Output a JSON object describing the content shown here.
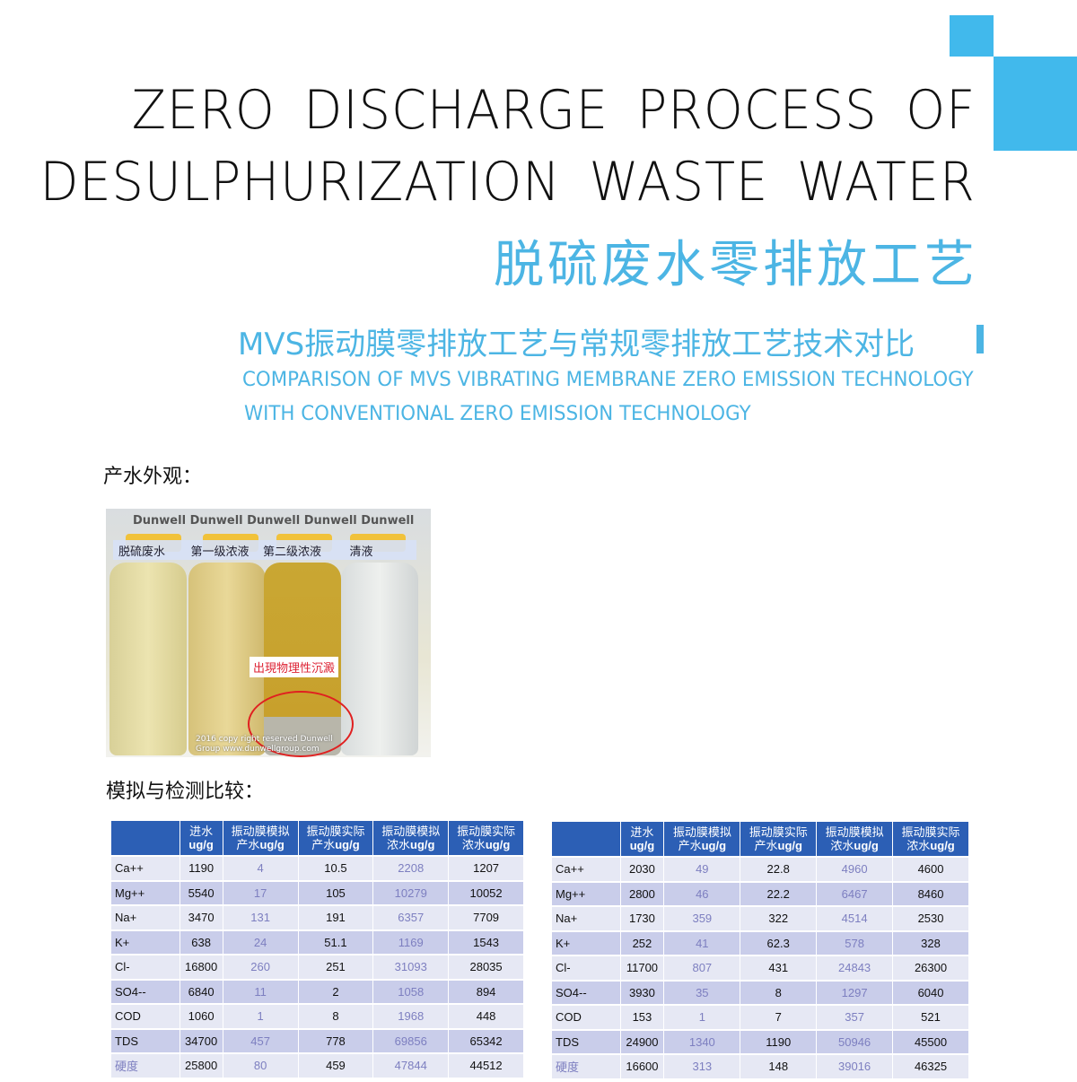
{
  "colors": {
    "accent": "#41b9ec",
    "table_header": "#2c5fb5",
    "row_dark": "#c9cdea",
    "row_light": "#e6e8f4",
    "simulated_text": "#7d7fc0"
  },
  "title": {
    "line1": "ZERO DISCHARGE PROCESS OF",
    "line2": "DESULPHURIZATION WASTE WATER",
    "cn": "脱硫废水零排放工艺"
  },
  "subtitle": {
    "cn": "MVS振动膜零排放工艺与常规零排放工艺技术对比",
    "en1": "COMPARISON OF MVS VIBRATING MEMBRANE ZERO EMISSION TECHNOLOGY",
    "en2": "WITH CONVENTIONAL ZERO EMISSION TECHNOLOGY"
  },
  "section1": "产水外观：",
  "photo": {
    "watermark": "Dunwell Dunwell Dunwell Dunwell Dunwell",
    "labels": [
      "脱硫废水",
      "第一级浓液",
      "第二级浓液",
      "清液"
    ],
    "note": "出現物理性沉澱",
    "copyright1": "2016 copy right reserved Dunwell",
    "copyright2": "Group www.dunwellgroup.com"
  },
  "section2": "模拟与检测比较：",
  "table_headers": [
    [
      "",
      ""
    ],
    [
      "进水",
      "ug/g"
    ],
    [
      "振动膜模拟",
      "产水",
      "ug/g"
    ],
    [
      "振动膜实际",
      "产水",
      "ug/g"
    ],
    [
      "振动膜模拟",
      "浓水",
      "ug/g"
    ],
    [
      "振动膜实际",
      "浓水",
      "ug/g"
    ]
  ],
  "tables": [
    {
      "rows": [
        [
          "Ca++",
          "1190",
          "4",
          "10.5",
          "2208",
          "1207"
        ],
        [
          "Mg++",
          "5540",
          "17",
          "105",
          "10279",
          "10052"
        ],
        [
          "Na+",
          "3470",
          "131",
          "191",
          "6357",
          "7709"
        ],
        [
          "K+",
          "638",
          "24",
          "51.1",
          "1169",
          "1543"
        ],
        [
          "Cl-",
          "16800",
          "260",
          "251",
          "31093",
          "28035"
        ],
        [
          "SO4--",
          "6840",
          "11",
          "2",
          "1058",
          "894"
        ],
        [
          "COD",
          "1060",
          "1",
          "8",
          "1968",
          "448"
        ],
        [
          "TDS",
          "34700",
          "457",
          "778",
          "69856",
          "65342"
        ],
        [
          "硬度",
          "25800",
          "80",
          "459",
          "47844",
          "44512"
        ]
      ]
    },
    {
      "rows": [
        [
          "Ca++",
          "2030",
          "49",
          "22.8",
          "4960",
          "4600"
        ],
        [
          "Mg++",
          "2800",
          "46",
          "22.2",
          "6467",
          "8460"
        ],
        [
          "Na+",
          "1730",
          "359",
          "322",
          "4514",
          "2530"
        ],
        [
          "K+",
          "252",
          "41",
          "62.3",
          "578",
          "328"
        ],
        [
          "Cl-",
          "11700",
          "807",
          "431",
          "24843",
          "26300"
        ],
        [
          "SO4--",
          "3930",
          "35",
          "8",
          "1297",
          "6040"
        ],
        [
          "COD",
          "153",
          "1",
          "7",
          "357",
          "521"
        ],
        [
          "TDS",
          "24900",
          "1340",
          "1190",
          "50946",
          "45500"
        ],
        [
          "硬度",
          "16600",
          "313",
          "148",
          "39016",
          "46325"
        ]
      ]
    }
  ]
}
